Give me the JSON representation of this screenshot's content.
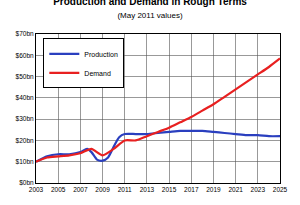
{
  "chart_data": {
    "type": "line",
    "title": "Production and Demand in Rough Terms",
    "subtitle": "(May 2011 values)",
    "series": [
      {
        "name": "Production",
        "color": "#2a3fbf",
        "x": [
          2003,
          2004,
          2005,
          2006,
          2007,
          2007.6,
          2008,
          2008.5,
          2009,
          2009.5,
          2010,
          2010.5,
          2011,
          2012,
          2013,
          2014,
          2015,
          2016,
          2017,
          2018,
          2019,
          2020,
          2021,
          2022,
          2023,
          2024,
          2025
        ],
        "values": [
          10,
          12.5,
          13.5,
          13.5,
          14.5,
          16,
          14.5,
          11,
          10.5,
          12,
          17,
          21.5,
          23,
          23,
          23,
          23.5,
          24,
          24.5,
          24.5,
          24.5,
          24,
          23.5,
          23,
          22.5,
          22.5,
          22,
          22
        ]
      },
      {
        "name": "Demand",
        "color": "#e82020",
        "x": [
          2003,
          2004,
          2005,
          2006,
          2007,
          2008,
          2009,
          2010,
          2011,
          2012,
          2013,
          2014,
          2015,
          2016,
          2017,
          2018,
          2019,
          2020,
          2021,
          2022,
          2023,
          2024,
          2025
        ],
        "values": [
          10,
          12,
          12.5,
          13,
          14,
          16,
          13,
          16,
          20,
          20,
          22,
          24,
          26,
          28.5,
          31,
          34,
          37,
          40.5,
          44,
          47.5,
          51,
          54.5,
          58.5
        ]
      }
    ],
    "xlim": [
      2003,
      2025
    ],
    "xticks": [
      2003,
      2005,
      2007,
      2009,
      2011,
      2013,
      2015,
      2017,
      2019,
      2021,
      2023,
      2025
    ],
    "ylim": [
      0,
      70
    ],
    "yticks": [
      {
        "value": 0,
        "label": "$0bn"
      },
      {
        "value": 10,
        "label": "$10bn"
      },
      {
        "value": 20,
        "label": "$20bn"
      },
      {
        "value": 30,
        "label": "$30bn"
      },
      {
        "value": 40,
        "label": "$40bn"
      },
      {
        "value": 50,
        "label": "$50bn"
      },
      {
        "value": 60,
        "label": "$60bn"
      },
      {
        "value": 70,
        "label": "$70bn"
      }
    ],
    "grid": true,
    "legend": "upper left"
  }
}
